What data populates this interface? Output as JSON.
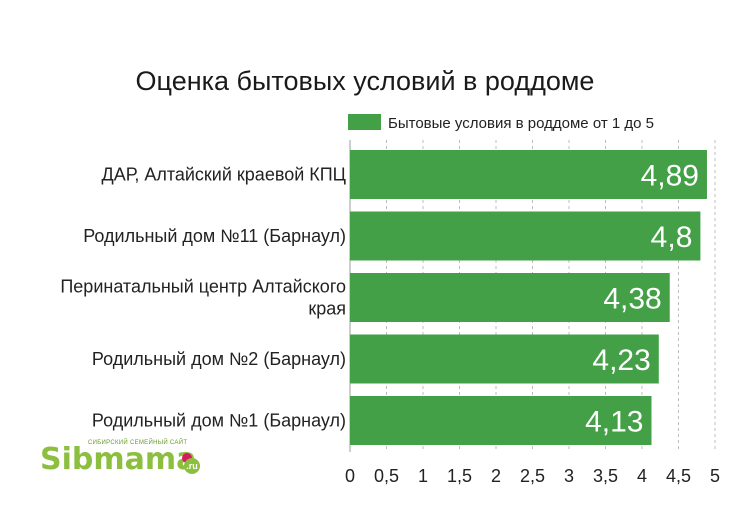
{
  "chart_data": {
    "type": "bar",
    "orientation": "horizontal",
    "title": "Оценка бытовых условий в роддоме",
    "legend": {
      "label": "Бытовые условия в роддоме от 1 до 5",
      "placement": "top-right"
    },
    "categories": [
      [
        "ДАР, Алтайский краевой КПЦ"
      ],
      [
        "Родильный дом №11 (Барнаул)"
      ],
      [
        "Перинатальный центр Алтайского",
        "края"
      ],
      [
        "Родильный дом №2 (Барнаул)"
      ],
      [
        "Родильный дом №1 (Барнаул)"
      ]
    ],
    "values": [
      4.89,
      4.8,
      4.38,
      4.23,
      4.13
    ],
    "value_labels": [
      "4,89",
      "4,8",
      "4,38",
      "4,23",
      "4,13"
    ],
    "xlim": [
      0,
      5
    ],
    "ticks": [
      0,
      0.5,
      1,
      1.5,
      2,
      2.5,
      3,
      3.5,
      4,
      4.5,
      5
    ],
    "tick_labels": [
      "0",
      "0,5",
      "1",
      "1,5",
      "2",
      "2,5",
      "3",
      "3,5",
      "4",
      "4,5",
      "5"
    ],
    "grid": {
      "vertical": true,
      "style": "dashed"
    },
    "bar_color": "#43a047"
  },
  "watermark": {
    "brand": "Sibmama",
    "tagline": "СИБИРСКИЙ СЕМЕЙНЫЙ САЙТ",
    "domain": ".ru",
    "colors": {
      "text": "#8cbf3f",
      "accent": "#d81b60"
    }
  }
}
